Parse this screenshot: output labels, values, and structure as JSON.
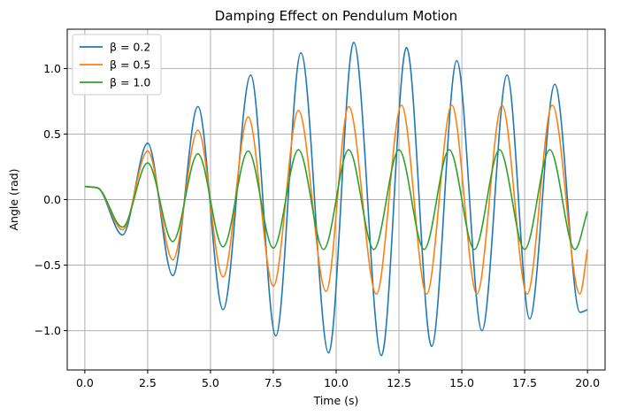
{
  "chart_data": {
    "type": "line",
    "title": "Damping Effect on Pendulum Motion",
    "xlabel": "Time (s)",
    "ylabel": "Angle (rad)",
    "xlim": [
      -0.7,
      20.7
    ],
    "ylim": [
      -1.3,
      1.3
    ],
    "xticks": [
      0.0,
      2.5,
      5.0,
      7.5,
      10.0,
      12.5,
      15.0,
      17.5,
      20.0
    ],
    "xtick_labels": [
      "0.0",
      "2.5",
      "5.0",
      "7.5",
      "10.0",
      "12.5",
      "15.0",
      "17.5",
      "20.0"
    ],
    "yticks": [
      -1.0,
      -0.5,
      0.0,
      0.5,
      1.0
    ],
    "ytick_labels": [
      "−1.0",
      "−0.5",
      "0.0",
      "0.5",
      "1.0"
    ],
    "grid": true,
    "legend_position": "top-left",
    "series": [
      {
        "name": "β = 0.2",
        "color": "#1f77b4",
        "x": [
          0,
          0.5,
          1.5,
          2.5,
          3.5,
          4.5,
          5.5,
          6.6,
          7.6,
          8.6,
          9.7,
          10.7,
          11.8,
          12.8,
          13.8,
          14.8,
          15.8,
          16.8,
          17.7,
          18.7,
          19.7,
          20.0
        ],
        "y": [
          0.1,
          0.09,
          -0.27,
          0.43,
          -0.58,
          0.71,
          -0.84,
          0.95,
          -1.04,
          1.12,
          -1.17,
          1.2,
          -1.19,
          1.16,
          -1.12,
          1.06,
          -1.0,
          0.95,
          -0.91,
          0.88,
          -0.86,
          -0.84
        ]
      },
      {
        "name": "β = 0.5",
        "color": "#ff7f0e",
        "x": [
          0,
          0.5,
          1.5,
          2.5,
          3.5,
          4.5,
          5.5,
          6.5,
          7.5,
          8.5,
          9.6,
          10.5,
          11.6,
          12.6,
          13.6,
          14.6,
          15.6,
          16.6,
          17.6,
          18.6,
          19.7,
          20.0
        ],
        "y": [
          0.1,
          0.09,
          -0.23,
          0.37,
          -0.46,
          0.53,
          -0.59,
          0.63,
          -0.66,
          0.68,
          -0.7,
          0.71,
          -0.72,
          0.72,
          -0.72,
          0.72,
          -0.72,
          0.72,
          -0.72,
          0.72,
          -0.72,
          -0.38
        ]
      },
      {
        "name": "β = 1.0",
        "color": "#2ca02c",
        "x": [
          0,
          0.5,
          1.5,
          2.5,
          3.5,
          4.5,
          5.5,
          6.5,
          7.5,
          8.5,
          9.5,
          10.5,
          11.5,
          12.5,
          13.5,
          14.5,
          15.5,
          16.5,
          17.5,
          18.5,
          19.5,
          20.0
        ],
        "y": [
          0.1,
          0.09,
          -0.21,
          0.28,
          -0.32,
          0.35,
          -0.36,
          0.37,
          -0.37,
          0.38,
          -0.38,
          0.38,
          -0.38,
          0.38,
          -0.38,
          0.38,
          -0.38,
          0.38,
          -0.38,
          0.38,
          -0.38,
          -0.09
        ]
      }
    ]
  }
}
